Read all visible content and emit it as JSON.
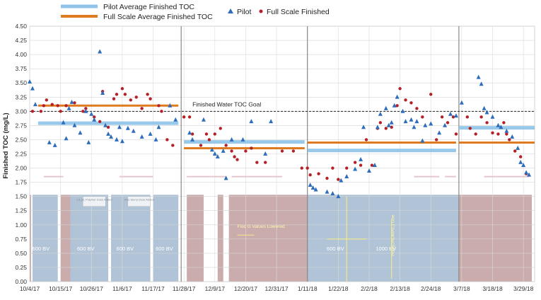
{
  "chart_data": {
    "type": "scatter",
    "title": "",
    "ylabel": "Finished TOC (mg/L)",
    "xlabel": "",
    "ylim": [
      0,
      4.5
    ],
    "ytick_step": 0.25,
    "x_start": "2017-10-04",
    "x_end": "2018-04-02",
    "x_tick_labels": [
      "10/4/17",
      "10/15/17",
      "10/26/17",
      "11/6/17",
      "11/17/17",
      "11/28/17",
      "12/9/17",
      "12/20/17",
      "12/31/17",
      "1/11/18",
      "1/22/18",
      "2/2/18",
      "2/13/18",
      "2/24/18",
      "3/7/18",
      "3/18/18",
      "3/29/18"
    ],
    "legend": {
      "pilot_avg": "Pilot Average Finished TOC",
      "full_avg": "Full Scale Average Finished TOC",
      "pilot": "Pilot",
      "full": "Full Scale Finished"
    },
    "goal": {
      "label": "Finished Water TOC Goal",
      "value": 3.0
    },
    "colors": {
      "pilot": "#2e6dbb",
      "full": "#b32026",
      "pilot_avg": "#8fc4e8",
      "full_avg": "#e07a1f",
      "blue_band": "#a9bcd3",
      "red_band": "#c4a3a3"
    },
    "period_dividers": [
      54,
      99,
      153
    ],
    "averages": [
      {
        "start": 3,
        "end": 53,
        "pilot": 2.79,
        "full": 3.1
      },
      {
        "start": 55,
        "end": 98,
        "pilot": 2.46,
        "full": 2.35
      },
      {
        "start": 99,
        "end": 152,
        "pilot": 2.31,
        "full": 2.45
      },
      {
        "start": 153,
        "end": 180,
        "pilot": 2.71,
        "full": 2.45
      }
    ],
    "bands": [
      {
        "start": 0,
        "end": 0.5,
        "color": "red"
      },
      {
        "start": 1,
        "end": 10,
        "color": "blue"
      },
      {
        "start": 11,
        "end": 14.5,
        "color": "red"
      },
      {
        "start": 14.5,
        "end": 28,
        "color": "blue"
      },
      {
        "start": 29,
        "end": 43,
        "color": "blue"
      },
      {
        "start": 44,
        "end": 53,
        "color": "blue"
      },
      {
        "start": 56,
        "end": 62,
        "color": "red"
      },
      {
        "start": 67,
        "end": 69,
        "color": "red"
      },
      {
        "start": 71,
        "end": 99,
        "color": "red"
      },
      {
        "start": 99,
        "end": 153,
        "color": "blue"
      },
      {
        "start": 153,
        "end": 179,
        "color": "red"
      }
    ],
    "band_labels": [
      {
        "x": 4,
        "text": "600 BV"
      },
      {
        "x": 20,
        "text": "600 BV"
      },
      {
        "x": 34,
        "text": "600 BV"
      },
      {
        "x": 48,
        "text": "600 BV"
      },
      {
        "x": 109,
        "text": "600 BV"
      },
      {
        "x": 127,
        "text": "1000 BV"
      }
    ],
    "annotations": [
      {
        "x": 74,
        "y": 0.95,
        "text": "Floc G Values Lowered"
      },
      {
        "x": 23,
        "y": 1.4,
        "text": "1.5 g/L Polymer Dose Added"
      },
      {
        "x": 39,
        "y": 1.4,
        "text": "Fine Slurry Dose Added"
      },
      {
        "x": 129,
        "y": 0.45,
        "text": "Poly(DADMAC) Use"
      }
    ],
    "pilot_series": [
      [
        0,
        3.52
      ],
      [
        1,
        3.4
      ],
      [
        2,
        3.12
      ],
      [
        7,
        2.45
      ],
      [
        9,
        2.4
      ],
      [
        12,
        2.8
      ],
      [
        13,
        2.52
      ],
      [
        14,
        3.05
      ],
      [
        15,
        3.16
      ],
      [
        16,
        2.75
      ],
      [
        18,
        2.62
      ],
      [
        20,
        3.0
      ],
      [
        21,
        2.45
      ],
      [
        22,
        2.95
      ],
      [
        23,
        2.85
      ],
      [
        25,
        4.05
      ],
      [
        26,
        3.32
      ],
      [
        27,
        2.75
      ],
      [
        28,
        2.6
      ],
      [
        29,
        2.55
      ],
      [
        31,
        2.5
      ],
      [
        32,
        2.72
      ],
      [
        33,
        2.47
      ],
      [
        35,
        2.7
      ],
      [
        37,
        2.65
      ],
      [
        40,
        2.55
      ],
      [
        43,
        2.6
      ],
      [
        45,
        2.5
      ],
      [
        46,
        2.72
      ],
      [
        50,
        3.1
      ],
      [
        52,
        2.85
      ],
      [
        57,
        2.62
      ],
      [
        58,
        2.5
      ],
      [
        62,
        2.85
      ],
      [
        65,
        2.32
      ],
      [
        66,
        2.25
      ],
      [
        67,
        2.2
      ],
      [
        69,
        2.3
      ],
      [
        70,
        1.82
      ],
      [
        72,
        2.5
      ],
      [
        76,
        2.5
      ],
      [
        79,
        2.82
      ],
      [
        84,
        2.25
      ],
      [
        86,
        2.82
      ],
      [
        100,
        1.7
      ],
      [
        101,
        1.65
      ],
      [
        102,
        1.62
      ],
      [
        106,
        1.58
      ],
      [
        108,
        1.55
      ],
      [
        110,
        1.5
      ],
      [
        111,
        1.78
      ],
      [
        113,
        1.85
      ],
      [
        116,
        1.98
      ],
      [
        118,
        2.15
      ],
      [
        119,
        2.72
      ],
      [
        121,
        1.95
      ],
      [
        123,
        2.05
      ],
      [
        124,
        2.72
      ],
      [
        125,
        2.95
      ],
      [
        127,
        3.05
      ],
      [
        128,
        2.75
      ],
      [
        129,
        2.8
      ],
      [
        130,
        3.1
      ],
      [
        131,
        3.25
      ],
      [
        133,
        3.0
      ],
      [
        134,
        2.82
      ],
      [
        136,
        2.85
      ],
      [
        137,
        2.72
      ],
      [
        138,
        2.82
      ],
      [
        140,
        2.48
      ],
      [
        141,
        2.75
      ],
      [
        143,
        2.78
      ],
      [
        146,
        2.62
      ],
      [
        148,
        2.75
      ],
      [
        150,
        2.95
      ],
      [
        152,
        2.92
      ],
      [
        154,
        3.15
      ],
      [
        160,
        3.6
      ],
      [
        161,
        3.48
      ],
      [
        162,
        3.05
      ],
      [
        163,
        2.98
      ],
      [
        165,
        2.9
      ],
      [
        167,
        2.75
      ],
      [
        168,
        2.72
      ],
      [
        170,
        2.65
      ],
      [
        172,
        2.55
      ],
      [
        174,
        2.35
      ],
      [
        175,
        2.1
      ],
      [
        176,
        2.05
      ],
      [
        177,
        1.92
      ],
      [
        178,
        1.88
      ]
    ],
    "full_series": [
      [
        1,
        3.0
      ],
      [
        4,
        3.0
      ],
      [
        5,
        3.1
      ],
      [
        6,
        3.2
      ],
      [
        8,
        3.12
      ],
      [
        10,
        3.1
      ],
      [
        11,
        3.0
      ],
      [
        13,
        3.1
      ],
      [
        16,
        3.15
      ],
      [
        19,
        3.0
      ],
      [
        20,
        3.05
      ],
      [
        23,
        2.9
      ],
      [
        25,
        2.82
      ],
      [
        26,
        3.35
      ],
      [
        28,
        2.72
      ],
      [
        30,
        3.22
      ],
      [
        31,
        3.3
      ],
      [
        33,
        3.4
      ],
      [
        34,
        3.3
      ],
      [
        36,
        3.2
      ],
      [
        38,
        3.25
      ],
      [
        40,
        3.05
      ],
      [
        42,
        3.3
      ],
      [
        43,
        3.22
      ],
      [
        46,
        3.1
      ],
      [
        47,
        3.0
      ],
      [
        49,
        2.5
      ],
      [
        51,
        2.4
      ],
      [
        55,
        2.9
      ],
      [
        57,
        2.9
      ],
      [
        58,
        2.6
      ],
      [
        61,
        2.4
      ],
      [
        63,
        2.6
      ],
      [
        64,
        2.5
      ],
      [
        66,
        2.6
      ],
      [
        68,
        2.7
      ],
      [
        70,
        2.4
      ],
      [
        72,
        2.3
      ],
      [
        73,
        2.2
      ],
      [
        74,
        2.15
      ],
      [
        77,
        2.3
      ],
      [
        79,
        2.35
      ],
      [
        81,
        2.1
      ],
      [
        84,
        2.1
      ],
      [
        90,
        2.3
      ],
      [
        94,
        2.3
      ],
      [
        97,
        2.0
      ],
      [
        99,
        2.0
      ],
      [
        100,
        1.88
      ],
      [
        103,
        1.9
      ],
      [
        106,
        1.82
      ],
      [
        108,
        2.0
      ],
      [
        110,
        1.8
      ],
      [
        113,
        2.0
      ],
      [
        116,
        2.1
      ],
      [
        118,
        2.05
      ],
      [
        120,
        2.5
      ],
      [
        122,
        2.05
      ],
      [
        124,
        2.7
      ],
      [
        125,
        2.8
      ],
      [
        127,
        2.7
      ],
      [
        129,
        2.72
      ],
      [
        131,
        3.1
      ],
      [
        132,
        3.4
      ],
      [
        134,
        3.2
      ],
      [
        136,
        3.15
      ],
      [
        138,
        3.05
      ],
      [
        140,
        2.9
      ],
      [
        143,
        3.3
      ],
      [
        145,
        2.5
      ],
      [
        147,
        2.9
      ],
      [
        149,
        2.8
      ],
      [
        151,
        2.9
      ],
      [
        152,
        2.6
      ],
      [
        156,
        2.9
      ],
      [
        157,
        2.7
      ],
      [
        159,
        2.6
      ],
      [
        161,
        2.9
      ],
      [
        163,
        2.8
      ],
      [
        165,
        2.62
      ],
      [
        167,
        2.6
      ],
      [
        169,
        2.8
      ],
      [
        170,
        2.6
      ],
      [
        171,
        2.5
      ],
      [
        173,
        2.3
      ],
      [
        175,
        2.2
      ],
      [
        177,
        1.9
      ]
    ]
  }
}
